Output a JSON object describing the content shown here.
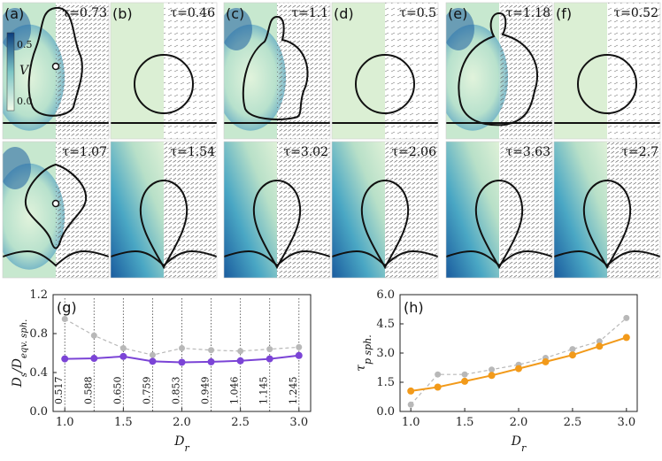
{
  "panels": [
    {
      "row": 0,
      "col": 0,
      "letter": "(a)",
      "tau": "τ=0.73",
      "shape": "blob",
      "style": "mixed",
      "inner": true
    },
    {
      "row": 0,
      "col": 1,
      "letter": "(b)",
      "tau": "τ=0.46",
      "shape": "circle",
      "style": "green"
    },
    {
      "row": 0,
      "col": 2,
      "letter": "(c)",
      "tau": "τ=1.1",
      "shape": "bulb",
      "style": "mixed"
    },
    {
      "row": 0,
      "col": 3,
      "letter": "(d)",
      "tau": "τ=0.5",
      "shape": "circle",
      "style": "green"
    },
    {
      "row": 0,
      "col": 4,
      "letter": "(e)",
      "tau": "τ=1.18",
      "shape": "bulb2",
      "style": "mixed"
    },
    {
      "row": 0,
      "col": 5,
      "letter": "(f)",
      "tau": "τ=0.52",
      "shape": "circle",
      "style": "green"
    },
    {
      "row": 1,
      "col": 0,
      "letter": "",
      "tau": "τ=1.07",
      "shape": "diamond",
      "style": "mixed",
      "inner": true
    },
    {
      "row": 1,
      "col": 1,
      "letter": "",
      "tau": "τ=1.54",
      "shape": "drop",
      "style": "blue"
    },
    {
      "row": 1,
      "col": 2,
      "letter": "",
      "tau": "τ=3.02",
      "shape": "drop",
      "style": "blue"
    },
    {
      "row": 1,
      "col": 3,
      "letter": "",
      "tau": "τ=2.06",
      "shape": "drop",
      "style": "blue"
    },
    {
      "row": 1,
      "col": 4,
      "letter": "",
      "tau": "τ=3.63",
      "shape": "drop",
      "style": "blue"
    },
    {
      "row": 1,
      "col": 5,
      "letter": "",
      "tau": "τ=2.7",
      "shape": "drop",
      "style": "blue"
    }
  ],
  "colorbar": {
    "label": "V",
    "tick_high": "0.5",
    "tick_low": "0.0"
  },
  "colors": {
    "field_green": "#dbefd4",
    "field_blue": "#1e5fa0",
    "grey_series": "#b8b8b8",
    "purple_series": "#7b44d6",
    "orange_series": "#f29a1a"
  },
  "chart_data": [
    {
      "type": "line",
      "panel_label": "(g)",
      "xlabel": "D_r",
      "ylabel": "D_s/D_eqv. sph.",
      "xlim": [
        0.9,
        3.1
      ],
      "ylim": [
        0.0,
        1.2
      ],
      "xticks": [
        "1.0",
        "1.5",
        "2.0",
        "2.5",
        "3.0"
      ],
      "yticks": [
        "0.0",
        "0.4",
        "0.8",
        "1.2"
      ],
      "x": [
        1.0,
        1.25,
        1.5,
        1.75,
        2.0,
        2.25,
        2.5,
        2.75,
        3.0
      ],
      "series": [
        {
          "name": "grey",
          "values": [
            0.95,
            0.78,
            0.65,
            0.58,
            0.65,
            0.63,
            0.62,
            0.64,
            0.66
          ]
        },
        {
          "name": "purple",
          "values": [
            0.54,
            0.545,
            0.565,
            0.515,
            0.505,
            0.51,
            0.52,
            0.54,
            0.575
          ]
        }
      ],
      "annotations": [
        "0.517",
        "0.588",
        "0.650",
        "0.759",
        "0.853",
        "0.949",
        "1.046",
        "1.145",
        "1.245"
      ]
    },
    {
      "type": "line",
      "panel_label": "(h)",
      "xlabel": "D_r",
      "ylabel": "τ_p sph.",
      "xlim": [
        0.9,
        3.1
      ],
      "ylim": [
        0.0,
        6.0
      ],
      "xticks": [
        "1.0",
        "1.5",
        "2.0",
        "2.5",
        "3.0"
      ],
      "yticks": [
        "0.0",
        "1.5",
        "3.0",
        "4.5",
        "6.0"
      ],
      "x": [
        1.0,
        1.25,
        1.5,
        1.75,
        2.0,
        2.25,
        2.5,
        2.75,
        3.0
      ],
      "series": [
        {
          "name": "grey",
          "values": [
            0.35,
            1.9,
            1.9,
            2.15,
            2.4,
            2.75,
            3.2,
            3.6,
            4.8
          ]
        },
        {
          "name": "orange",
          "values": [
            1.05,
            1.25,
            1.55,
            1.85,
            2.2,
            2.55,
            2.9,
            3.35,
            3.8
          ]
        }
      ]
    }
  ]
}
